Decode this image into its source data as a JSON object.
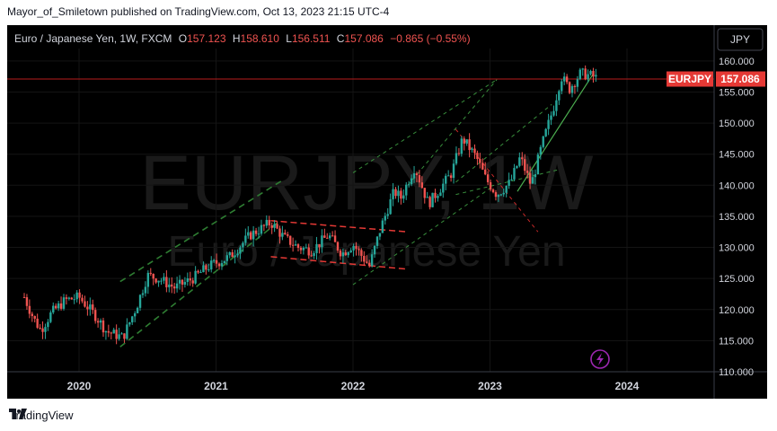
{
  "publisher_line": "Mayor_of_Smiletown published on TradingView.com, Oct 13, 2023 21:15 UTC-4",
  "header": {
    "symbol_desc": "Euro / Japanese Yen, 1W, FXCM",
    "o_label": "O",
    "o_value": "157.123",
    "h_label": "H",
    "h_value": "158.610",
    "l_label": "L",
    "l_value": "156.511",
    "c_label": "C",
    "c_value": "157.086",
    "change": "−0.865 (−0.55%)"
  },
  "currency_button": "JPY",
  "watermark": {
    "symbol": "EURJPY, 1W",
    "name": "Euro / Japanese Yen"
  },
  "price_label": {
    "symbol": "EURJPY",
    "value": "157.086"
  },
  "footer": {
    "brand": "TradingView"
  },
  "colors": {
    "up": "#26a69a",
    "down": "#ef5350",
    "green_line": "#2e7d32",
    "red_dash": "#e53935",
    "grey_line": "#4caf50",
    "label_bg": "#e53935"
  },
  "chart_data": {
    "type": "candlestick",
    "ylim": [
      110,
      162
    ],
    "y_ticks": [
      "160.000",
      "155.000",
      "150.000",
      "145.000",
      "140.000",
      "135.000",
      "130.000",
      "125.000",
      "120.000",
      "115.000",
      "110.000"
    ],
    "x_ticks": [
      "2020",
      "2021",
      "2022",
      "2023",
      "2024"
    ],
    "last_price": 157.086,
    "series_anchors": [
      {
        "t": 2019.6,
        "p": 122.0
      },
      {
        "t": 2019.67,
        "p": 118.5
      },
      {
        "t": 2019.72,
        "p": 116.7
      },
      {
        "t": 2019.8,
        "p": 119.5
      },
      {
        "t": 2019.9,
        "p": 121.5
      },
      {
        "t": 2020.0,
        "p": 122.0
      },
      {
        "t": 2020.12,
        "p": 119.0
      },
      {
        "t": 2020.2,
        "p": 116.5
      },
      {
        "t": 2020.32,
        "p": 115.5
      },
      {
        "t": 2020.42,
        "p": 120.5
      },
      {
        "t": 2020.5,
        "p": 125.5
      },
      {
        "t": 2020.58,
        "p": 125.0
      },
      {
        "t": 2020.7,
        "p": 123.5
      },
      {
        "t": 2020.83,
        "p": 125.0
      },
      {
        "t": 2020.95,
        "p": 127.0
      },
      {
        "t": 2021.1,
        "p": 128.5
      },
      {
        "t": 2021.25,
        "p": 132.0
      },
      {
        "t": 2021.4,
        "p": 134.0
      },
      {
        "t": 2021.5,
        "p": 131.5
      },
      {
        "t": 2021.6,
        "p": 130.0
      },
      {
        "t": 2021.7,
        "p": 129.5
      },
      {
        "t": 2021.82,
        "p": 132.0
      },
      {
        "t": 2021.92,
        "p": 129.0
      },
      {
        "t": 2022.0,
        "p": 130.5
      },
      {
        "t": 2022.12,
        "p": 127.0
      },
      {
        "t": 2022.2,
        "p": 133.0
      },
      {
        "t": 2022.3,
        "p": 139.0
      },
      {
        "t": 2022.35,
        "p": 138.0
      },
      {
        "t": 2022.45,
        "p": 143.0
      },
      {
        "t": 2022.55,
        "p": 137.0
      },
      {
        "t": 2022.62,
        "p": 139.0
      },
      {
        "t": 2022.72,
        "p": 142.0
      },
      {
        "t": 2022.8,
        "p": 147.5
      },
      {
        "t": 2022.9,
        "p": 144.5
      },
      {
        "t": 2022.97,
        "p": 141.0
      },
      {
        "t": 2023.05,
        "p": 138.5
      },
      {
        "t": 2023.15,
        "p": 140.5
      },
      {
        "t": 2023.22,
        "p": 144.5
      },
      {
        "t": 2023.3,
        "p": 140.0
      },
      {
        "t": 2023.38,
        "p": 146.5
      },
      {
        "t": 2023.47,
        "p": 153.0
      },
      {
        "t": 2023.52,
        "p": 157.5
      },
      {
        "t": 2023.58,
        "p": 155.5
      },
      {
        "t": 2023.66,
        "p": 158.0
      },
      {
        "t": 2023.74,
        "p": 157.6
      },
      {
        "t": 2023.79,
        "p": 157.1
      }
    ]
  }
}
